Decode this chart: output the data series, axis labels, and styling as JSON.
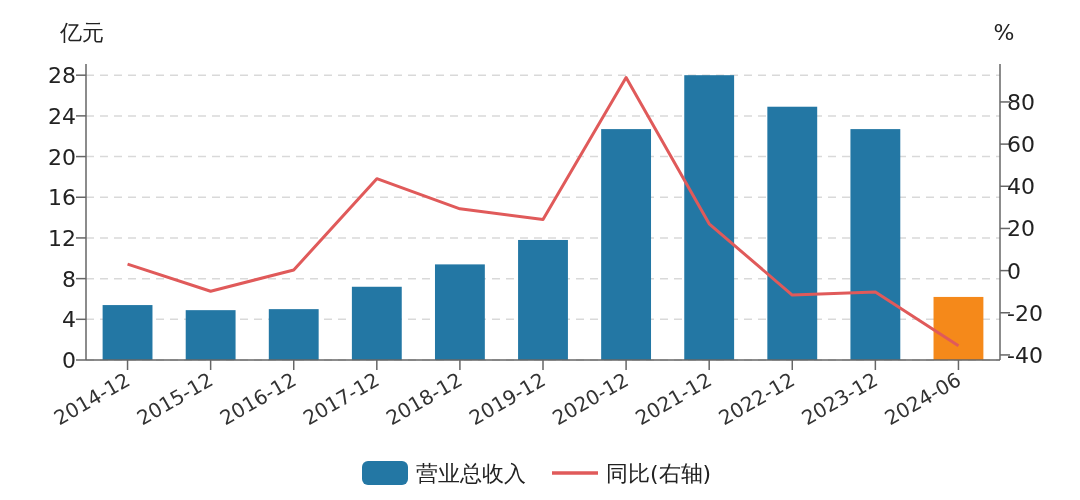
{
  "chart_data": {
    "type": "bar",
    "ylabel": "亿元",
    "y2label": "%",
    "categories": [
      "2014-12",
      "2015-12",
      "2016-12",
      "2017-12",
      "2018-12",
      "2019-12",
      "2020-12",
      "2021-12",
      "2022-12",
      "2023-12",
      "2024-06"
    ],
    "series": [
      {
        "name": "营业总收入",
        "color": "#2377a4",
        "colors": [
          "#2377a4",
          "#2377a4",
          "#2377a4",
          "#2377a4",
          "#2377a4",
          "#2377a4",
          "#2377a4",
          "#2377a4",
          "#2377a4",
          "#2377a4",
          "#f5891a"
        ],
        "values": [
          5.4,
          4.9,
          5.0,
          7.2,
          9.4,
          11.8,
          22.7,
          28.0,
          24.9,
          22.7,
          6.2
        ]
      },
      {
        "name": "同比(右轴)",
        "type": "line",
        "axis": "y2",
        "color": "#e05a5a",
        "values": [
          3.1,
          -9.8,
          0.3,
          43.6,
          29.3,
          24.2,
          91.6,
          22.2,
          -11.6,
          -10.2,
          -35.6
        ]
      }
    ],
    "ylim": [
      0,
      29.1
    ],
    "yticks": [
      0,
      4,
      8,
      12,
      16,
      20,
      24,
      28
    ],
    "y2lim": [
      -42.4,
      98
    ],
    "y2ticks": [
      -40,
      -20,
      0,
      20,
      40,
      60,
      80
    ],
    "grid": "y",
    "legend": "bottom",
    "marker": "none",
    "line_style": "solid"
  }
}
